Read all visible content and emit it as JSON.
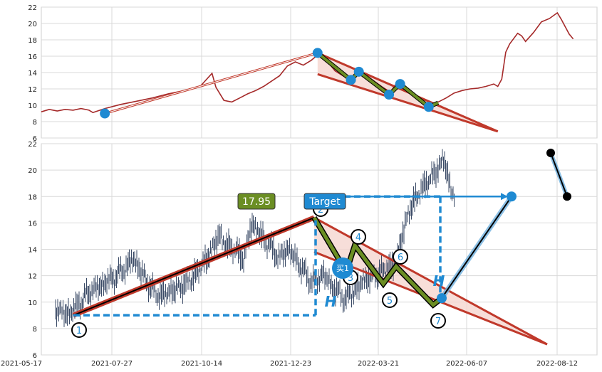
{
  "chart_data": [
    {
      "type": "line",
      "panel": "top",
      "ylim": [
        6,
        22
      ],
      "yticks": [
        "6",
        "8",
        "10",
        "12",
        "14",
        "16",
        "18",
        "20",
        "22"
      ],
      "grid": true,
      "colors": {
        "price": "#a52a2a",
        "trend": "#c0392b",
        "pattern": "#6b8e23",
        "node": "#1f8ad2",
        "fill": "#f5d6d0"
      },
      "price_line": [
        [
          0,
          9.2
        ],
        [
          10,
          9.5
        ],
        [
          20,
          9.3
        ],
        [
          30,
          9.5
        ],
        [
          40,
          9.4
        ],
        [
          50,
          9.6
        ],
        [
          60,
          9.4
        ],
        [
          65,
          9.1
        ],
        [
          80,
          9.6
        ],
        [
          100,
          10.1
        ],
        [
          120,
          10.5
        ],
        [
          140,
          10.9
        ],
        [
          160,
          11.4
        ],
        [
          180,
          11.8
        ],
        [
          200,
          12.3
        ],
        [
          215,
          13.9
        ],
        [
          220,
          12.2
        ],
        [
          230,
          10.6
        ],
        [
          240,
          10.4
        ],
        [
          250,
          10.9
        ],
        [
          260,
          11.4
        ],
        [
          270,
          11.8
        ],
        [
          280,
          12.3
        ],
        [
          300,
          13.6
        ],
        [
          310,
          14.8
        ],
        [
          320,
          15.3
        ],
        [
          330,
          14.9
        ],
        [
          340,
          15.5
        ],
        [
          350,
          16.3
        ],
        [
          355,
          16.2
        ],
        [
          360,
          15.4
        ],
        [
          365,
          14.8
        ],
        [
          370,
          14.2
        ],
        [
          380,
          13.6
        ],
        [
          390,
          13.0
        ],
        [
          395,
          13.8
        ],
        [
          400,
          14.2
        ],
        [
          410,
          13.6
        ],
        [
          420,
          12.9
        ],
        [
          430,
          12.2
        ],
        [
          440,
          11.6
        ],
        [
          445,
          12.4
        ],
        [
          450,
          12.8
        ],
        [
          460,
          12.0
        ],
        [
          470,
          11.1
        ],
        [
          480,
          10.4
        ],
        [
          490,
          9.8
        ],
        [
          500,
          10.4
        ],
        [
          510,
          10.9
        ],
        [
          520,
          11.5
        ],
        [
          530,
          11.8
        ],
        [
          540,
          12.0
        ],
        [
          550,
          12.1
        ],
        [
          560,
          12.3
        ],
        [
          570,
          12.6
        ],
        [
          575,
          12.3
        ],
        [
          580,
          13.2
        ],
        [
          585,
          16.5
        ],
        [
          590,
          17.5
        ],
        [
          600,
          18.8
        ],
        [
          605,
          18.5
        ],
        [
          610,
          17.8
        ],
        [
          620,
          18.9
        ],
        [
          630,
          20.2
        ],
        [
          640,
          20.6
        ],
        [
          650,
          21.3
        ],
        [
          655,
          20.5
        ],
        [
          660,
          19.6
        ],
        [
          665,
          18.7
        ],
        [
          670,
          18.1
        ]
      ],
      "trend_lines": [
        [
          [
            80,
            9.0
          ],
          [
            348,
            16.4
          ]
        ],
        [
          [
            348,
            16.4
          ],
          [
            575,
            6.8
          ]
        ],
        [
          [
            348,
            13.8
          ],
          [
            575,
            6.8
          ]
        ]
      ],
      "pattern_path": [
        [
          348,
          16.4
        ],
        [
          390,
          13.1
        ],
        [
          400,
          14.1
        ],
        [
          438,
          11.3
        ],
        [
          452,
          12.6
        ],
        [
          488,
          9.8
        ],
        [
          500,
          10.3
        ]
      ],
      "pivot_points": [
        [
          80,
          9.0
        ],
        [
          348,
          16.4
        ],
        [
          390,
          13.1
        ],
        [
          400,
          14.1
        ],
        [
          438,
          11.3
        ],
        [
          452,
          12.6
        ],
        [
          488,
          9.8
        ]
      ]
    },
    {
      "type": "candlestick",
      "panel": "bottom",
      "ylim": [
        6,
        22
      ],
      "yticks": [
        "6",
        "8",
        "10",
        "12",
        "14",
        "16",
        "18",
        "20",
        "22"
      ],
      "xticks": [
        "2021-05-17",
        "2021-07-27",
        "2021-10-14",
        "2021-12-23",
        "2022-03-21",
        "2022-06-07",
        "2022-08-12"
      ],
      "grid": true,
      "colors": {
        "candle": "#3a4a66",
        "trend": "#c0392b",
        "pattern": "#6b8e23",
        "dash": "#1f8ad2",
        "node": "#1f8ad2",
        "target_box": "#1f8ad2",
        "price_box": "#6b8e23",
        "fill": "#f5d6d0",
        "end_dot": "#000000"
      },
      "candle_series": [
        [
          20,
          9.5
        ],
        [
          25,
          9.4
        ],
        [
          30,
          9.2
        ],
        [
          35,
          9.1
        ],
        [
          40,
          9.2
        ],
        [
          50,
          9.7
        ],
        [
          60,
          10.3
        ],
        [
          70,
          10.9
        ],
        [
          80,
          11.1
        ],
        [
          90,
          11.5
        ],
        [
          100,
          11.8
        ],
        [
          110,
          12.2
        ],
        [
          120,
          12.7
        ],
        [
          130,
          13.3
        ],
        [
          140,
          12.3
        ],
        [
          150,
          11.4
        ],
        [
          160,
          10.7
        ],
        [
          170,
          10.5
        ],
        [
          180,
          10.8
        ],
        [
          190,
          11.0
        ],
        [
          200,
          11.3
        ],
        [
          210,
          11.7
        ],
        [
          220,
          12.4
        ],
        [
          230,
          13.1
        ],
        [
          240,
          14.0
        ],
        [
          250,
          15.2
        ],
        [
          255,
          14.5
        ],
        [
          265,
          14.2
        ],
        [
          275,
          13.8
        ],
        [
          285,
          13.2
        ],
        [
          295,
          16.0
        ],
        [
          305,
          15.3
        ],
        [
          315,
          14.6
        ],
        [
          325,
          14.0
        ],
        [
          335,
          13.3
        ],
        [
          345,
          14.1
        ],
        [
          355,
          13.4
        ],
        [
          365,
          12.6
        ],
        [
          375,
          11.8
        ],
        [
          385,
          11.5
        ],
        [
          395,
          12.2
        ],
        [
          405,
          11.4
        ],
        [
          415,
          10.8
        ],
        [
          425,
          10.3
        ],
        [
          435,
          10.6
        ],
        [
          445,
          11.2
        ],
        [
          455,
          11.8
        ],
        [
          465,
          11.9
        ],
        [
          475,
          12.2
        ],
        [
          485,
          12.6
        ],
        [
          495,
          12.8
        ],
        [
          500,
          13.5
        ],
        [
          510,
          15.8
        ],
        [
          520,
          17.4
        ],
        [
          530,
          18.2
        ],
        [
          540,
          19.0
        ],
        [
          550,
          19.6
        ],
        [
          560,
          20.4
        ],
        [
          565,
          20.9
        ],
        [
          570,
          19.6
        ],
        [
          575,
          18.6
        ],
        [
          580,
          18.0
        ]
      ],
      "trend_line_left": [
        [
          45,
          9.0
        ],
        [
          383,
          16.4
        ]
      ],
      "trend_lines_right": [
        [
          [
            383,
            16.4
          ],
          [
            710,
            6.8
          ]
        ],
        [
          [
            383,
            13.8
          ],
          [
            710,
            6.8
          ]
        ]
      ],
      "pattern_path": [
        [
          383,
          16.4
        ],
        [
          428,
          12.3
        ],
        [
          440,
          14.3
        ],
        [
          480,
          11.4
        ],
        [
          498,
          12.7
        ],
        [
          550,
          9.8
        ],
        [
          562,
          10.3
        ]
      ],
      "up_line": [
        [
          562,
          10.3
        ],
        [
          660,
          18.0
        ]
      ],
      "down_line": [
        [
          715,
          21.3
        ],
        [
          738,
          18.0
        ]
      ],
      "dashed_lines": [
        [
          [
            45,
            9.0
          ],
          [
            385,
            9.0
          ]
        ],
        [
          [
            385,
            9.0
          ],
          [
            385,
            16.2
          ]
        ],
        [
          [
            425,
            18.0
          ],
          [
            560,
            18.0
          ]
        ],
        [
          [
            560,
            18.0
          ],
          [
            560,
            10.3
          ]
        ]
      ],
      "target_arrow": [
        [
          425,
          18.0
        ],
        [
          655,
          18.0
        ]
      ],
      "labels": {
        "p1": "1",
        "p2": "2",
        "p3": "3",
        "p4": "4",
        "p5": "5",
        "p6": "6",
        "p7": "7",
        "buy": "买1",
        "h1": "H",
        "h2": "H",
        "target": "Target",
        "price": "17.95"
      }
    }
  ]
}
